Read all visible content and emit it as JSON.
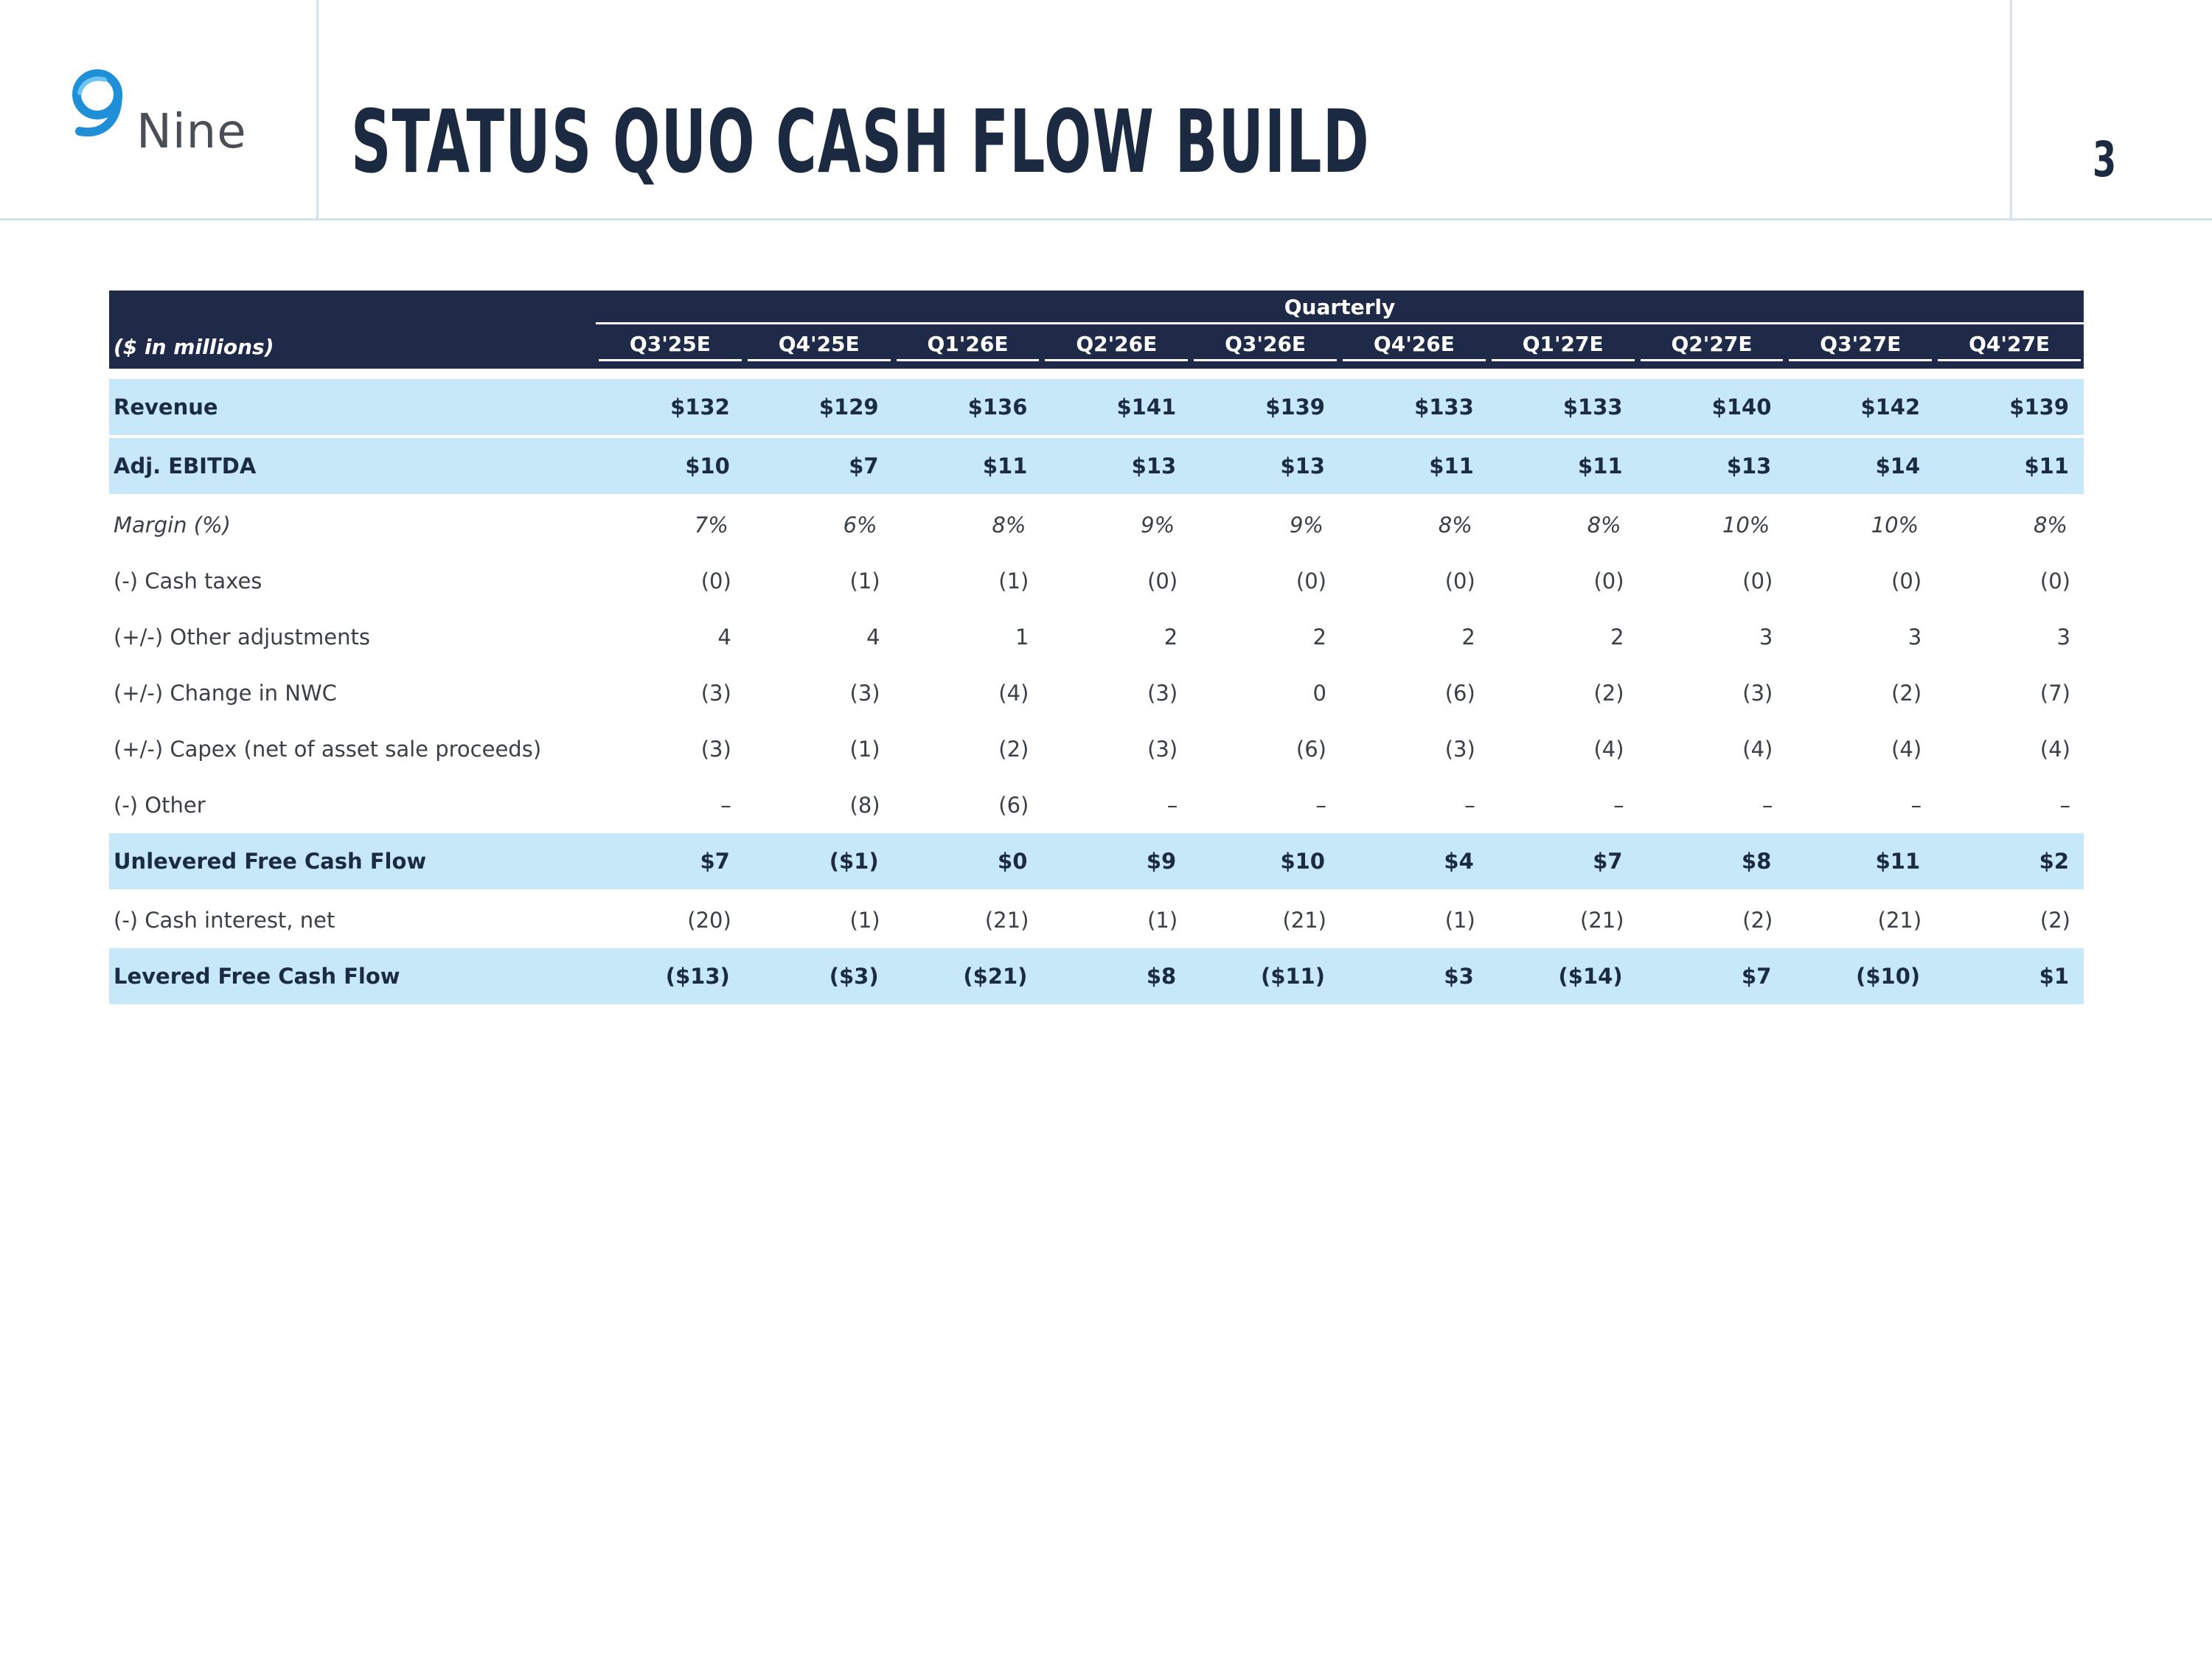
{
  "brand": {
    "name": "Nine",
    "accent": "#1e90d6"
  },
  "title": "STATUS QUO CASH FLOW BUILD",
  "page_number": "3",
  "table": {
    "group_header": "Quarterly",
    "units_label": "($ in millions)",
    "periods": [
      "Q3'25E",
      "Q4'25E",
      "Q1'26E",
      "Q2'26E",
      "Q3'26E",
      "Q4'26E",
      "Q1'27E",
      "Q2'27E",
      "Q3'27E",
      "Q4'27E"
    ],
    "rows": [
      {
        "label": "Revenue",
        "style": "hl",
        "values": [
          "$132",
          "$129",
          "$136",
          "$141",
          "$139",
          "$133",
          "$133",
          "$140",
          "$142",
          "$139"
        ]
      },
      {
        "label": "Adj. EBITDA",
        "style": "hl",
        "values": [
          "$10",
          "$7",
          "$11",
          "$13",
          "$13",
          "$11",
          "$11",
          "$13",
          "$14",
          "$11"
        ]
      },
      {
        "label": "Margin (%)",
        "style": "it",
        "values": [
          "7%",
          "6%",
          "8%",
          "9%",
          "9%",
          "8%",
          "8%",
          "10%",
          "10%",
          "8%"
        ]
      },
      {
        "label": "(-) Cash taxes",
        "style": "",
        "values": [
          "(0)",
          "(1)",
          "(1)",
          "(0)",
          "(0)",
          "(0)",
          "(0)",
          "(0)",
          "(0)",
          "(0)"
        ]
      },
      {
        "label": "(+/-) Other adjustments",
        "style": "",
        "values": [
          "4",
          "4",
          "1",
          "2",
          "2",
          "2",
          "2",
          "3",
          "3",
          "3"
        ]
      },
      {
        "label": "(+/-) Change in NWC",
        "style": "",
        "values": [
          "(3)",
          "(3)",
          "(4)",
          "(3)",
          "0",
          "(6)",
          "(2)",
          "(3)",
          "(2)",
          "(7)"
        ]
      },
      {
        "label": "(+/-) Capex (net of asset sale proceeds)",
        "style": "",
        "values": [
          "(3)",
          "(1)",
          "(2)",
          "(3)",
          "(6)",
          "(3)",
          "(4)",
          "(4)",
          "(4)",
          "(4)"
        ]
      },
      {
        "label": "(-) Other",
        "style": "",
        "values": [
          "–",
          "(8)",
          "(6)",
          "–",
          "–",
          "–",
          "–",
          "–",
          "–",
          "–"
        ]
      },
      {
        "label": "Unlevered Free Cash Flow",
        "style": "hl",
        "values": [
          "$7",
          "($1)",
          "$0",
          "$9",
          "$10",
          "$4",
          "$7",
          "$8",
          "$11",
          "$2"
        ]
      },
      {
        "label": "(-) Cash interest, net",
        "style": "",
        "values": [
          "(20)",
          "(1)",
          "(21)",
          "(1)",
          "(21)",
          "(1)",
          "(21)",
          "(2)",
          "(21)",
          "(2)"
        ]
      },
      {
        "label": "Levered Free Cash Flow",
        "style": "hl",
        "values": [
          "($13)",
          "($3)",
          "($21)",
          "$8",
          "($11)",
          "$3",
          "($14)",
          "$7",
          "($10)",
          "$1"
        ]
      }
    ]
  }
}
